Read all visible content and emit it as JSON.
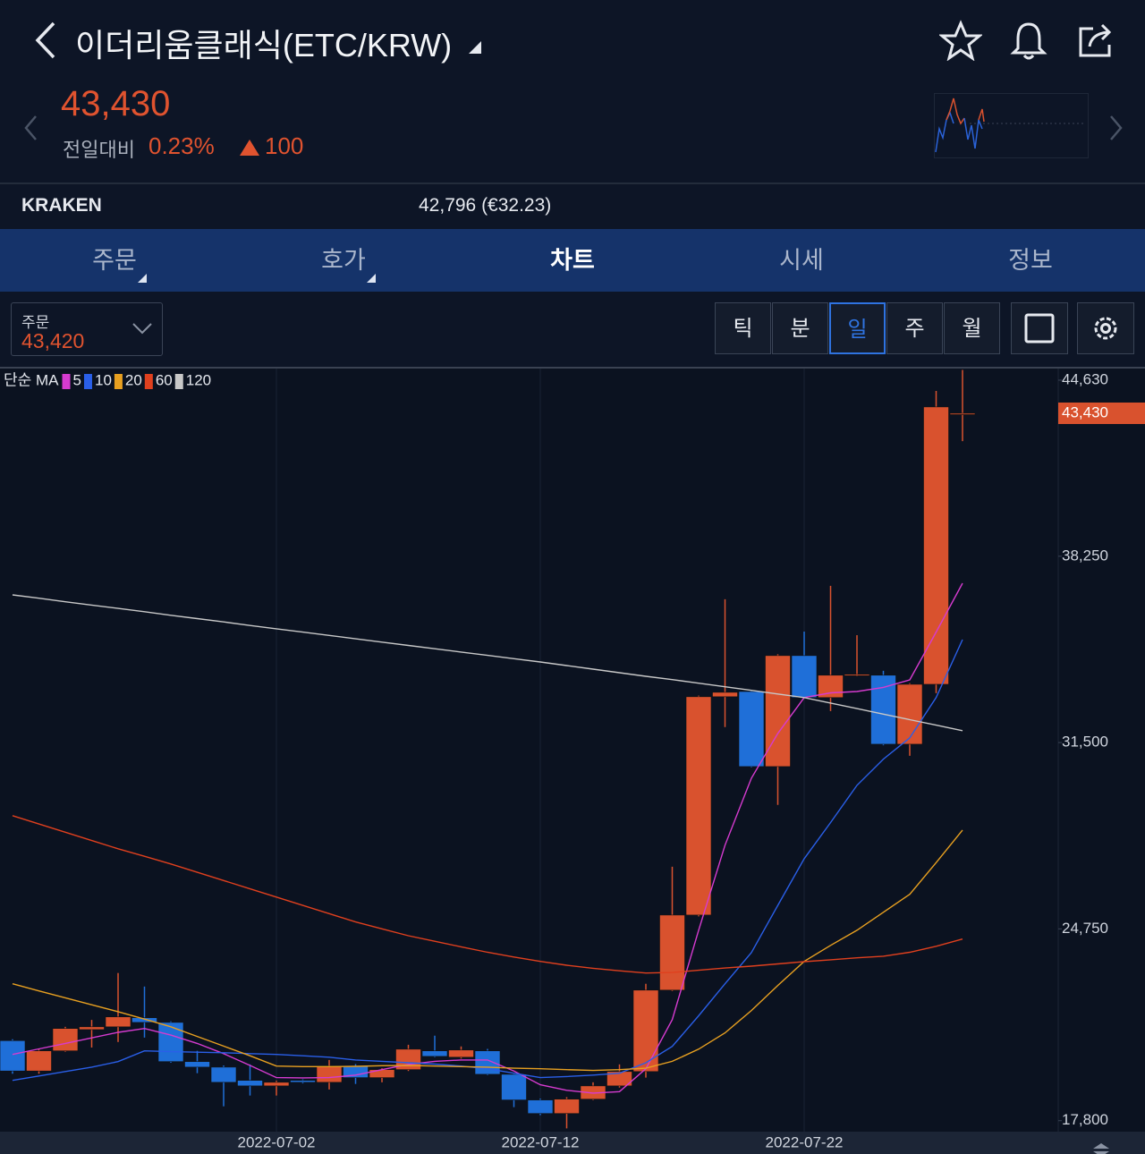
{
  "header": {
    "title": "이더리움클래식(ETC/KRW)",
    "price": "43,430",
    "change_label": "전일대비",
    "change_pct": "0.23%",
    "change_amt": "100"
  },
  "exchange": {
    "name": "KRAKEN",
    "price": "42,796 (€32.23)"
  },
  "tabs": [
    "주문",
    "호가",
    "차트",
    "시세",
    "정보"
  ],
  "active_tab": 2,
  "order": {
    "label": "주문",
    "price": "43,420"
  },
  "periods": [
    "틱",
    "분",
    "일",
    "주",
    "월"
  ],
  "active_period": 2,
  "chart_data": {
    "type": "candlestick",
    "ma_label": "단순 MA",
    "categories": [
      null,
      null,
      null,
      null,
      null,
      null,
      null,
      null,
      null,
      null,
      "2022-07-02",
      null,
      null,
      null,
      null,
      null,
      null,
      null,
      null,
      null,
      "2022-07-12",
      null,
      null,
      null,
      null,
      null,
      null,
      null,
      null,
      null,
      "2022-07-22",
      null,
      null,
      null,
      null,
      null,
      null
    ],
    "open": [
      20700,
      19600,
      20330,
      21100,
      21200,
      21530,
      21360,
      19940,
      19740,
      19260,
      19060,
      19260,
      19190,
      19780,
      19360,
      19650,
      20330,
      20100,
      20330,
      19480,
      18550,
      18060,
      18580,
      19060,
      19580,
      22530,
      25250,
      33160,
      33350,
      30630,
      34650,
      33130,
      33940,
      33940,
      31440,
      33610,
      43400
    ],
    "high": [
      20750,
      20400,
      21200,
      21450,
      23150,
      22660,
      21400,
      20330,
      19800,
      19840,
      19250,
      19300,
      20000,
      19850,
      19700,
      20550,
      20880,
      20490,
      20400,
      19500,
      18600,
      18650,
      19190,
      19840,
      22760,
      27000,
      33200,
      36690,
      33400,
      34700,
      35520,
      37180,
      35390,
      34100,
      33650,
      44240,
      45000
    ],
    "low": [
      19500,
      19500,
      20300,
      20450,
      20650,
      20810,
      19900,
      19520,
      18320,
      18710,
      18710,
      19150,
      18930,
      19130,
      19190,
      19600,
      20100,
      20050,
      19450,
      18290,
      18000,
      17520,
      18550,
      19000,
      19360,
      22500,
      25200,
      32060,
      30600,
      29240,
      33100,
      32640,
      33900,
      31400,
      31020,
      33290,
      42420
    ],
    "close": [
      19600,
      20330,
      21140,
      21200,
      21560,
      21360,
      19940,
      19740,
      19190,
      19060,
      19190,
      19190,
      19780,
      19360,
      19650,
      20390,
      20130,
      20360,
      19480,
      18550,
      18060,
      18580,
      19060,
      19580,
      22530,
      25250,
      33160,
      33320,
      30630,
      34650,
      33130,
      33940,
      33970,
      31440,
      33610,
      43660,
      43430
    ],
    "up_color": "#d9522e",
    "down_color": "#1f6fd8",
    "series": [
      {
        "name": "5",
        "color": "#d63bd0",
        "values": [
          20200,
          20400,
          20600,
          20800,
          21000,
          21140,
          20900,
          20600,
          20230,
          19800,
          19360,
          19350,
          19360,
          19450,
          19650,
          19840,
          19950,
          20000,
          20000,
          19600,
          19100,
          18900,
          18800,
          18850,
          19680,
          21460,
          24700,
          27780,
          30210,
          31830,
          33130,
          33300,
          33350,
          33500,
          33770,
          35500,
          37270
        ]
      },
      {
        "name": "10",
        "color": "#2a5fe8",
        "values": [
          19260,
          19420,
          19580,
          19740,
          19940,
          20330,
          20300,
          20280,
          20260,
          20230,
          20200,
          20150,
          20100,
          20000,
          19950,
          19900,
          19850,
          19780,
          19680,
          19520,
          19360,
          19400,
          19450,
          19520,
          19900,
          20490,
          21600,
          22760,
          23890,
          25600,
          27290,
          28600,
          29950,
          30900,
          31670,
          33130,
          35230
        ]
      },
      {
        "name": "20",
        "color": "#e8a020",
        "values": [
          22760,
          22500,
          22250,
          22000,
          21750,
          21480,
          21200,
          20850,
          20500,
          20150,
          19780,
          19760,
          19760,
          19770,
          19790,
          19800,
          19780,
          19760,
          19740,
          19700,
          19680,
          19650,
          19620,
          19650,
          19700,
          19950,
          20390,
          20980,
          21790,
          22700,
          23570,
          24150,
          24700,
          25350,
          26000,
          27150,
          28330
        ]
      },
      {
        "name": "60",
        "color": "#e0401e",
        "values": [
          28850,
          28550,
          28250,
          27950,
          27650,
          27380,
          27100,
          26800,
          26500,
          26200,
          25900,
          25600,
          25300,
          25000,
          24750,
          24500,
          24300,
          24100,
          23900,
          23730,
          23570,
          23430,
          23320,
          23230,
          23150,
          23170,
          23250,
          23330,
          23400,
          23480,
          23560,
          23630,
          23700,
          23760,
          23900,
          24120,
          24380
        ]
      },
      {
        "name": "120",
        "color": "#c8c8c8",
        "values": [
          36850,
          36730,
          36600,
          36480,
          36360,
          36240,
          36110,
          35990,
          35870,
          35740,
          35620,
          35500,
          35380,
          35260,
          35140,
          35020,
          34900,
          34780,
          34660,
          34540,
          34420,
          34290,
          34160,
          34030,
          33900,
          33780,
          33650,
          33520,
          33390,
          33260,
          33130,
          32930,
          32730,
          32530,
          32330,
          32130,
          31930
        ]
      }
    ],
    "ylim": [
      17500,
      45050
    ],
    "yticks": [
      {
        "value": 17800,
        "label": "17,800"
      },
      {
        "value": 24750,
        "label": "24,750"
      },
      {
        "value": 31500,
        "label": "31,500"
      },
      {
        "value": 38250,
        "label": "38,250"
      },
      {
        "value": 44630,
        "label": "44,630"
      }
    ],
    "current_price": {
      "value": 43430,
      "label": "43,430"
    }
  }
}
